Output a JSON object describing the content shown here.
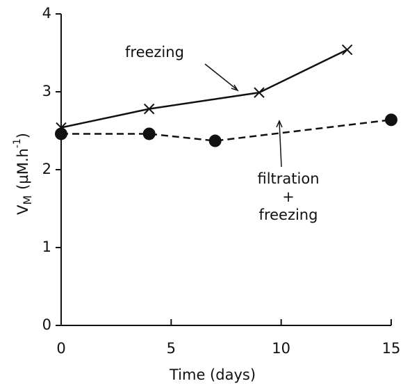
{
  "chart_data": {
    "type": "line",
    "x_label": "Time (days)",
    "y_label": {
      "main": "V",
      "sub": "M",
      "unit": "(µM.h",
      "sup": "-1",
      "close": ")"
    },
    "xlim": [
      0,
      15
    ],
    "xticks": [
      0,
      5,
      10,
      15
    ],
    "ylim": [
      0,
      4
    ],
    "yticks": [
      0,
      1,
      2,
      3,
      4
    ],
    "series": [
      {
        "color": "#111111",
        "marker": "x",
        "dashed": false,
        "x": [
          0,
          4,
          9,
          13
        ],
        "values": [
          2.54,
          2.78,
          2.99,
          3.54
        ]
      },
      {
        "color": "#111111",
        "marker": "circle",
        "dashed": true,
        "x": [
          0,
          4,
          7,
          15
        ],
        "values": [
          2.46,
          2.46,
          2.37,
          2.64
        ]
      }
    ],
    "annotations": [
      {
        "lines": [
          "freezing"
        ]
      },
      {
        "lines": [
          "filtration",
          "+",
          "freezing"
        ]
      }
    ]
  }
}
